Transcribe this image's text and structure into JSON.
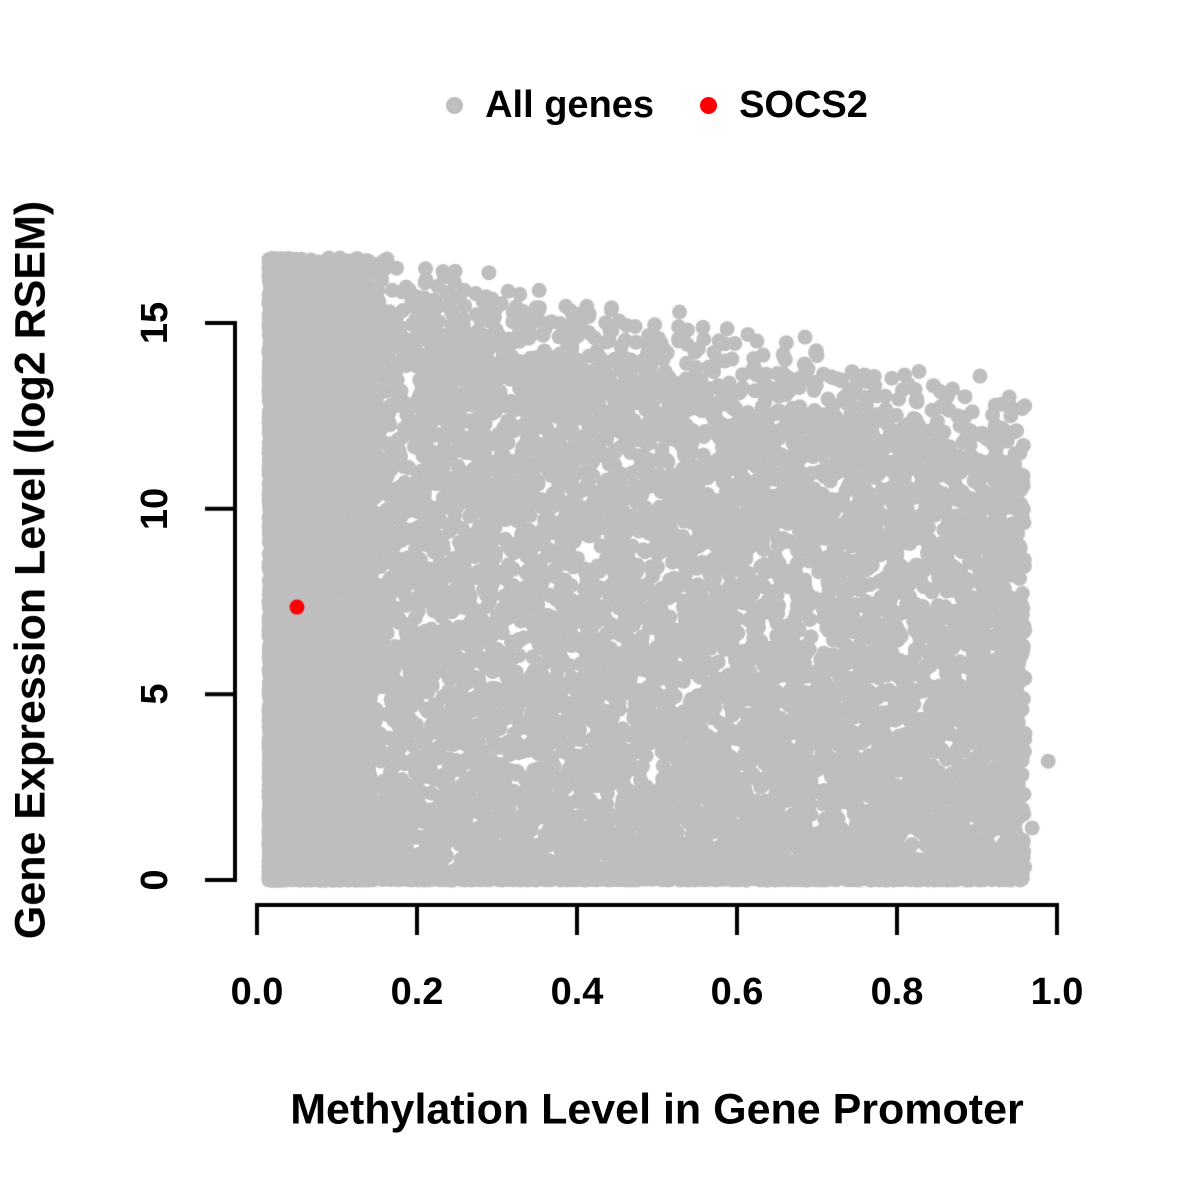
{
  "figure": {
    "background": "#ffffff",
    "axis_color": "#000000",
    "text_color": "#000000"
  },
  "legend": {
    "position": "top-center",
    "items": [
      {
        "label": "All genes",
        "color": "#bebebe",
        "marker": "filled-circle"
      },
      {
        "label": "SOCS2",
        "color": "#ff0000",
        "marker": "filled-circle"
      }
    ]
  },
  "chart_data": {
    "type": "scatter",
    "title": "",
    "xlabel": "Methylation Level in Gene Promoter",
    "ylabel": "Gene Expression Level (log2 RSEM)",
    "xlim": [
      0,
      1.0
    ],
    "ylim": [
      0,
      16.8
    ],
    "xticks": [
      0.0,
      0.2,
      0.4,
      0.6,
      0.8,
      1.0
    ],
    "xtick_labels": [
      "0.0",
      "0.2",
      "0.4",
      "0.6",
      "0.8",
      "1.0"
    ],
    "yticks": [
      0,
      5,
      10,
      15
    ],
    "ytick_labels": [
      "0",
      "5",
      "10",
      "15"
    ],
    "grid": false,
    "legend_position": "top-center",
    "series": [
      {
        "name": "All genes",
        "color": "#bebebe",
        "marker_radius_px": 7.5,
        "representation": "dense-cloud",
        "approx_points": 14000,
        "seed": 20240725,
        "x_range": [
          0.015,
          0.96
        ],
        "left_column_fraction": 0.32,
        "left_column_x_span": 0.13,
        "zero_pile_fraction": 0.1,
        "crown_fraction": 0.11,
        "body_exponent": 1.17,
        "upper_envelope": {
          "intercept": 15.2,
          "slope": -4.7,
          "jitter": 0.8
        },
        "crown_height": 2.3,
        "y_max_cap": 16.75,
        "extra_points": [
          [
            0.989,
            3.2
          ],
          [
            0.969,
            1.4
          ],
          [
            0.958,
            11.7
          ]
        ]
      },
      {
        "name": "SOCS2",
        "color": "#ff0000",
        "marker_radius_px": 7.5,
        "representation": "points",
        "points": [
          [
            0.05,
            7.35
          ]
        ]
      }
    ]
  }
}
